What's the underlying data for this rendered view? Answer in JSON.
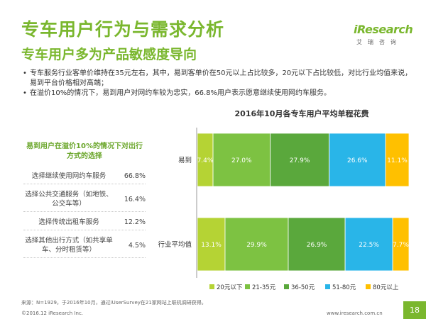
{
  "header": {
    "title": "专车用户行为与需求分析",
    "subtitle": "专车用户多为产品敏感度导向"
  },
  "logo": {
    "main": "iResearch",
    "sub": "艾瑞咨询"
  },
  "bullets": [
    "专车服务行业客单价维持在35元左右，其中，易到客单价在50元以上占比较多，20元以下占比较低，对比行业均值来说，易到平台价格相对高端；",
    "在溢价10%的情况下，易到用户对网约车较为忠实，66.8%用户表示愿意继续使用网约车服务。"
  ],
  "panel": {
    "title": "易到用户在溢价10%的情况下对出行方式的选择",
    "rows": [
      {
        "label": "选择继续使用网约车服务",
        "value": "66.8%"
      },
      {
        "label": "选择公共交通服务（如地铁、公交车等）",
        "value": "16.4%"
      },
      {
        "label": "选择传统出租车服务",
        "value": "12.2%"
      },
      {
        "label": "选择其他出行方式（如共享单车、分时租赁等）",
        "value": "4.5%"
      }
    ]
  },
  "chart_data": {
    "type": "bar",
    "orientation": "horizontal-stacked-100",
    "title": "2016年10月各专车用户平均单程花费",
    "categories": [
      "易到",
      "行业平均值"
    ],
    "series": [
      {
        "name": "20元以下",
        "color": "#b5d334",
        "values": [
          7.4,
          13.1
        ],
        "labels": [
          "7.4%",
          "13.1%"
        ]
      },
      {
        "name": "21-35元",
        "color": "#7dc242",
        "values": [
          27.0,
          29.9
        ],
        "labels": [
          "27.0%",
          "29.9%"
        ]
      },
      {
        "name": "36-50元",
        "color": "#5aa83c",
        "values": [
          27.9,
          26.9
        ],
        "labels": [
          "27.9%",
          "26.9%"
        ]
      },
      {
        "name": "51-80元",
        "color": "#29b5e8",
        "values": [
          26.6,
          22.5
        ],
        "labels": [
          "26.6%",
          "22.5%"
        ]
      },
      {
        "name": "80元以上",
        "color": "#ffc000",
        "values": [
          11.1,
          7.7
        ],
        "labels": [
          "11.1%",
          "7.7%"
        ]
      }
    ],
    "legend_position": "bottom",
    "grid": false
  },
  "footer": {
    "source": "来源：N=1929，于2016年10月，通过iUserSurvey在21家网站上联机调研获得。",
    "copyright": "©2016.12 iResearch Inc.",
    "website": "www.iresearch.com.cn",
    "page": "18"
  }
}
